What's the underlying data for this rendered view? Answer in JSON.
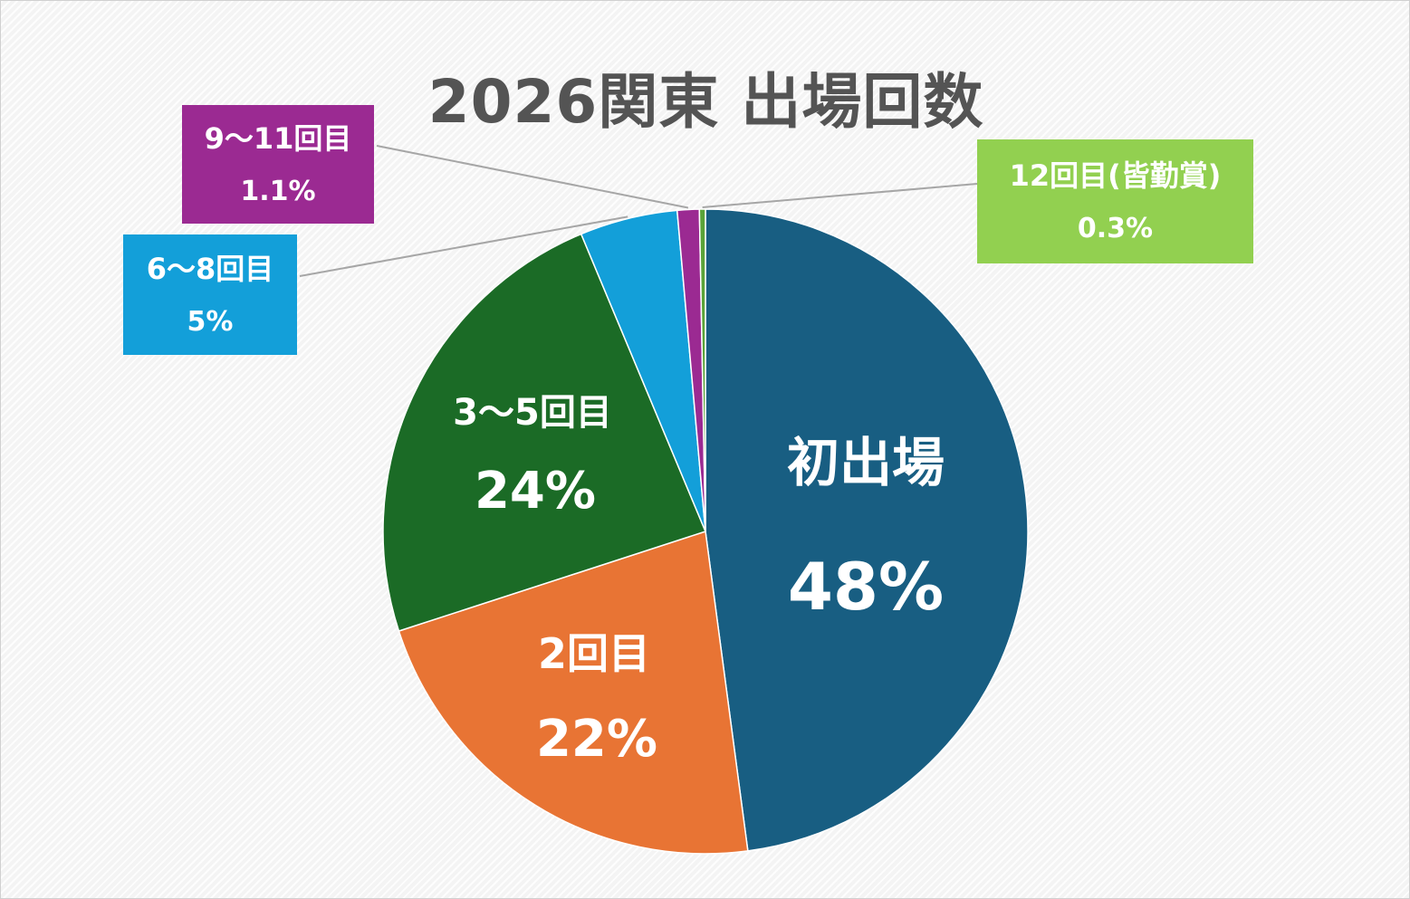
{
  "chart_data": {
    "type": "pie",
    "title": "2026関東 出場回数",
    "slices": [
      {
        "label": "初出場",
        "value": 47.9,
        "display": "48%",
        "color": "#185e82"
      },
      {
        "label": "2回目",
        "value": 22.1,
        "display": "22%",
        "color": "#e87434"
      },
      {
        "label": "3〜5回目",
        "value": 23.7,
        "display": "24%",
        "color": "#1b6b26"
      },
      {
        "label": "6〜8回目",
        "value": 4.9,
        "display": "5%",
        "color": "#139fd9"
      },
      {
        "label": "9〜11回目",
        "value": 1.1,
        "display": "1.1%",
        "color": "#9b2a92"
      },
      {
        "label": "12回目(皆勤賞)",
        "value": 0.3,
        "display": "0.3%",
        "color": "#5aa338"
      }
    ],
    "legend": "none"
  }
}
